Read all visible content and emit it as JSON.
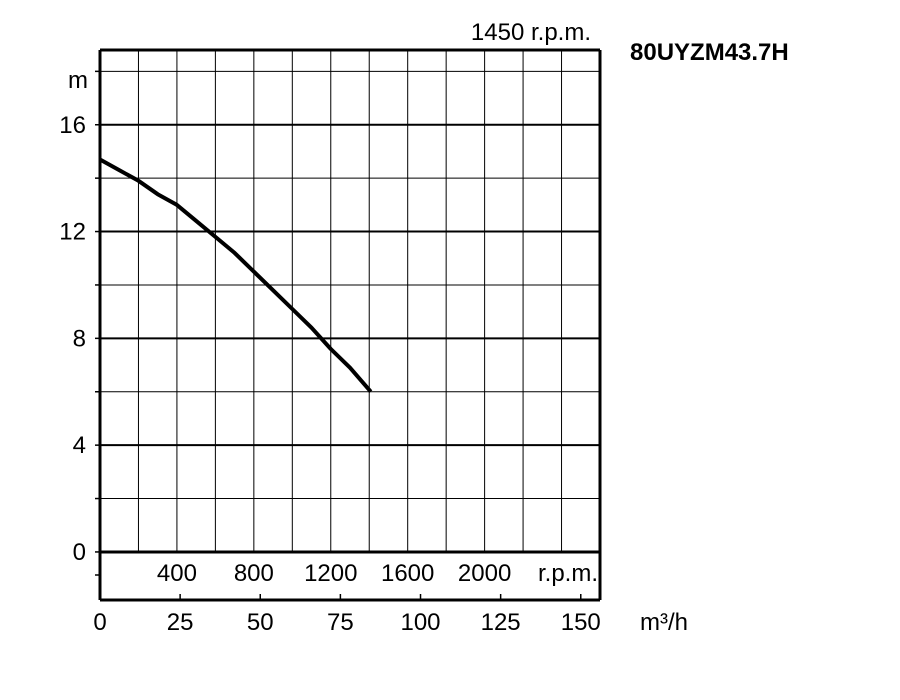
{
  "chart_data": {
    "type": "line",
    "title": "80UYZM43.7H",
    "speed_label": "1450 r.p.m.",
    "ylabel": "m",
    "xlabel": "m³/h",
    "xlim": [
      0,
      156
    ],
    "ylim": [
      -1.8,
      18.8
    ],
    "grid": true,
    "y_ticks": [
      0,
      4,
      8,
      12,
      16
    ],
    "y_grid_step": 2,
    "x_ticks": [
      0,
      25,
      50,
      75,
      100,
      125,
      150
    ],
    "x_grid_step": 12,
    "flow_scale": {
      "values": [
        "400",
        "800",
        "1200",
        "1600",
        "2000"
      ],
      "positions": [
        24,
        48,
        72,
        96,
        120
      ],
      "unit": "r.p.m."
    },
    "series": [
      {
        "x": [
          0,
          6,
          12,
          18,
          24,
          30,
          36,
          42,
          48,
          54,
          60,
          66,
          72,
          78,
          84.5
        ],
        "y": [
          14.7,
          14.3,
          13.9,
          13.4,
          13.0,
          12.4,
          11.8,
          11.2,
          10.5,
          9.8,
          9.1,
          8.4,
          7.6,
          6.9,
          6.0
        ]
      }
    ]
  }
}
